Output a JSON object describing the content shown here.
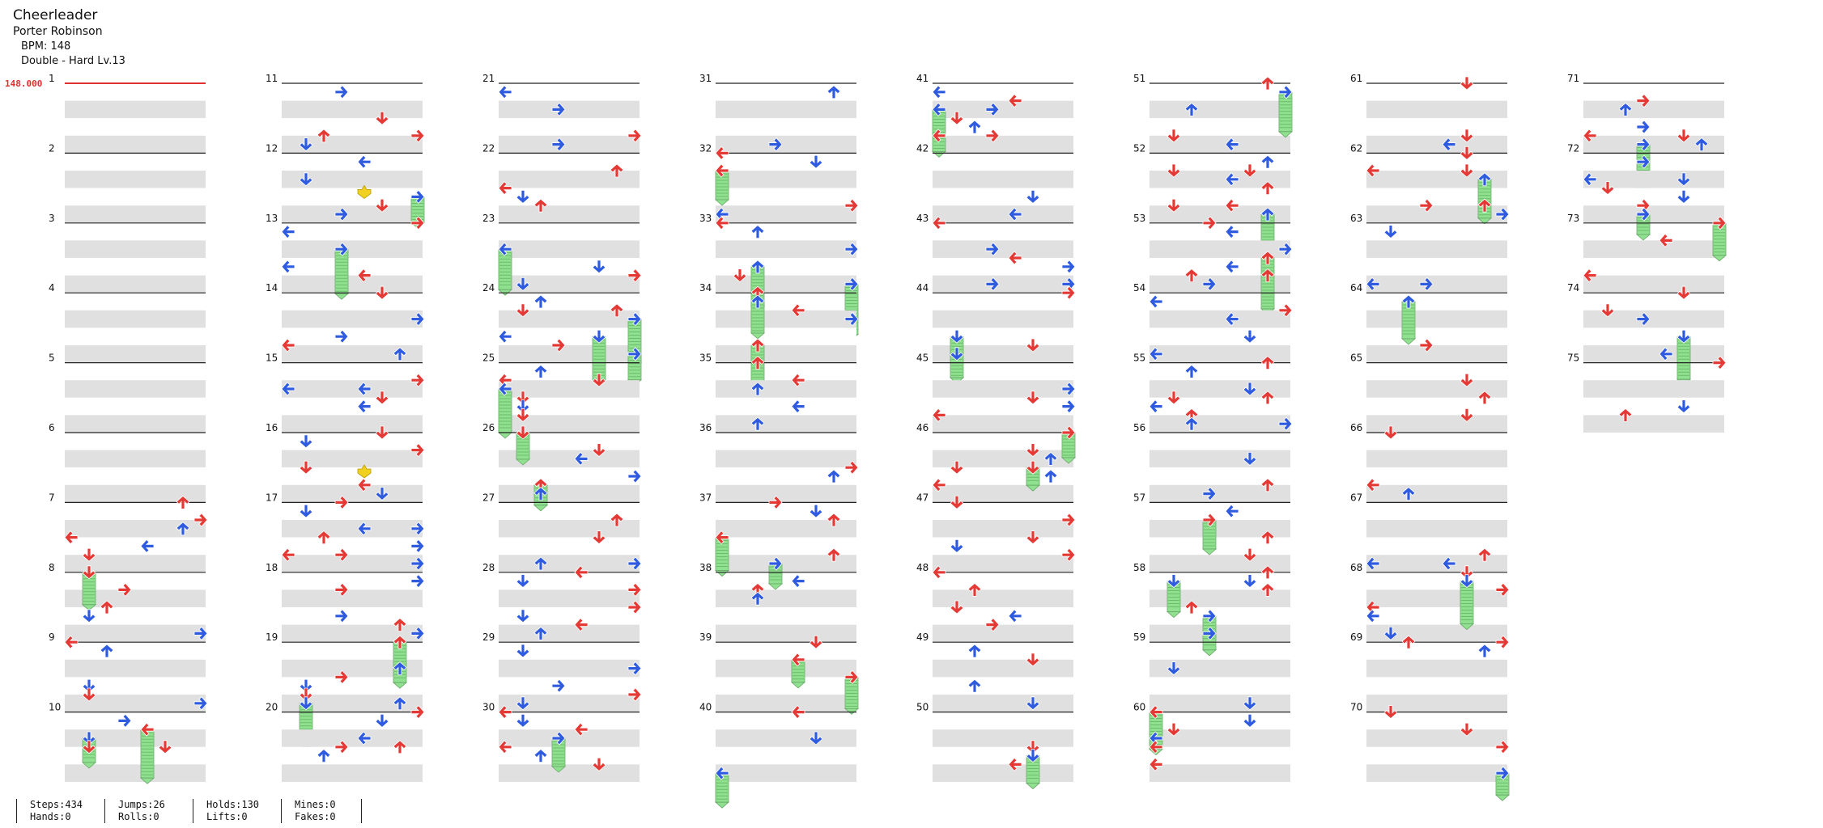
{
  "song": {
    "title": "Cheerleader",
    "artist": "Porter Robinson",
    "bpm": "BPM: 148",
    "chart": "Double - Hard  Lv.13"
  },
  "bpm_marker": "148.000",
  "measures": [
    "1",
    "2",
    "3",
    "4",
    "5",
    "6",
    "7",
    "8",
    "9",
    "10",
    "11",
    "12",
    "13",
    "14",
    "15",
    "16",
    "17",
    "18",
    "19",
    "20",
    "21",
    "22",
    "23",
    "24",
    "25",
    "26",
    "27",
    "28",
    "29",
    "30",
    "31",
    "32",
    "33",
    "34",
    "35",
    "36",
    "37",
    "38",
    "39",
    "40",
    "41",
    "42",
    "43",
    "44",
    "45",
    "46",
    "47",
    "48",
    "49",
    "50",
    "51",
    "52",
    "53",
    "54",
    "55",
    "56",
    "57",
    "58",
    "59",
    "60",
    "61",
    "62",
    "63",
    "64",
    "65",
    "66",
    "67",
    "68",
    "69",
    "70",
    "71",
    "72",
    "73",
    "74",
    "75"
  ],
  "stats": {
    "steps": "Steps:434",
    "hands": "Hands:0",
    "jumps": "Jumps:26",
    "rolls": "Rolls:0",
    "holds": "Holds:130",
    "lifts": "Lifts:0",
    "mines": "Mines:0",
    "fakes": "Fakes:0"
  },
  "colors": {
    "quarter": "#e53935",
    "eighth": "#2f5be0",
    "mine": "#f0d020",
    "hold": "#8fe08f",
    "stripe": "#e0e0e0",
    "bpm": "#e03030"
  },
  "icons": {
    "left": "arrow-left-icon",
    "down": "arrow-down-icon",
    "up": "arrow-up-icon",
    "right": "arrow-right-icon",
    "hold": "hold-body-icon",
    "mine": "mine-icon"
  }
}
